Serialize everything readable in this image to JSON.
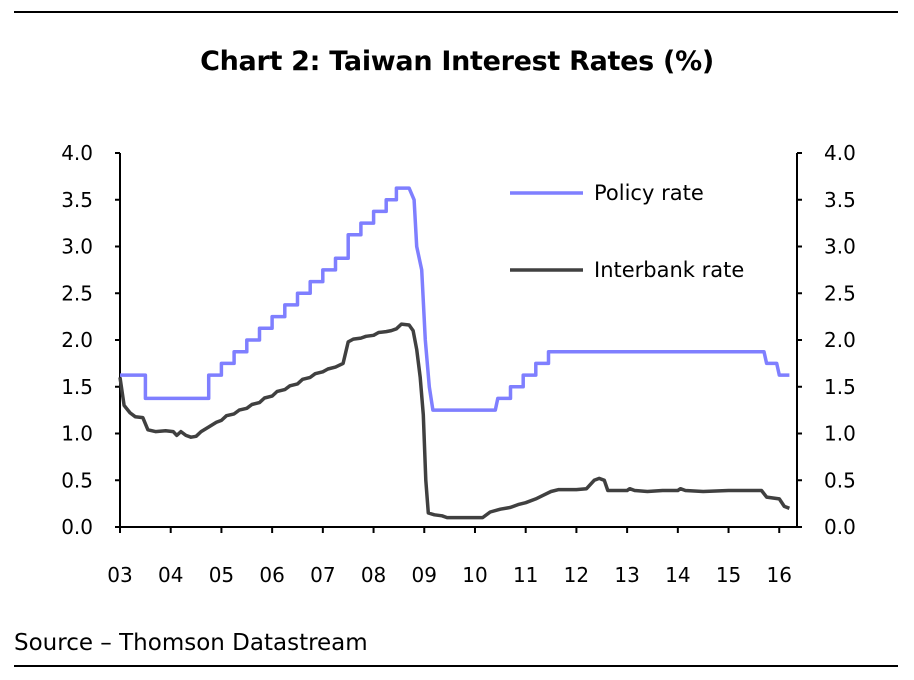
{
  "title": "Chart 2: Taiwan Interest Rates (%)",
  "source": "Source – Thomson Datastream",
  "chart_data": {
    "type": "line",
    "title": "Chart 2: Taiwan Interest Rates (%)",
    "xlabel": "",
    "ylabel": "",
    "xlim": [
      2003,
      2016.35
    ],
    "ylim": [
      0,
      4.0
    ],
    "y_ticks": [
      "0.0",
      "0.5",
      "1.0",
      "1.5",
      "2.0",
      "2.5",
      "3.0",
      "3.5",
      "4.0"
    ],
    "y_tick_values": [
      0,
      0.5,
      1.0,
      1.5,
      2.0,
      2.5,
      3.0,
      3.5,
      4.0
    ],
    "x_ticks": [
      "03",
      "04",
      "05",
      "06",
      "07",
      "08",
      "09",
      "10",
      "11",
      "12",
      "13",
      "14",
      "15",
      "16"
    ],
    "x_tick_values": [
      2003,
      2004,
      2005,
      2006,
      2007,
      2008,
      2009,
      2010,
      2011,
      2012,
      2013,
      2014,
      2015,
      2016
    ],
    "grid": false,
    "legend_position": "top-right",
    "series": [
      {
        "name": "Policy rate",
        "color": "#7f7fff",
        "line_shape": "step",
        "points": [
          [
            2003.0,
            1.625
          ],
          [
            2003.5,
            1.625
          ],
          [
            2003.5,
            1.375
          ],
          [
            2004.75,
            1.375
          ],
          [
            2004.75,
            1.625
          ],
          [
            2005.0,
            1.625
          ],
          [
            2005.0,
            1.75
          ],
          [
            2005.25,
            1.75
          ],
          [
            2005.25,
            1.875
          ],
          [
            2005.5,
            1.875
          ],
          [
            2005.5,
            2.0
          ],
          [
            2005.75,
            2.0
          ],
          [
            2005.75,
            2.125
          ],
          [
            2006.0,
            2.125
          ],
          [
            2006.0,
            2.25
          ],
          [
            2006.25,
            2.25
          ],
          [
            2006.25,
            2.375
          ],
          [
            2006.5,
            2.375
          ],
          [
            2006.5,
            2.5
          ],
          [
            2006.75,
            2.5
          ],
          [
            2006.75,
            2.625
          ],
          [
            2007.0,
            2.625
          ],
          [
            2007.0,
            2.75
          ],
          [
            2007.25,
            2.75
          ],
          [
            2007.25,
            2.875
          ],
          [
            2007.5,
            2.875
          ],
          [
            2007.5,
            3.125
          ],
          [
            2007.75,
            3.125
          ],
          [
            2007.75,
            3.25
          ],
          [
            2008.0,
            3.25
          ],
          [
            2008.0,
            3.375
          ],
          [
            2008.25,
            3.375
          ],
          [
            2008.25,
            3.5
          ],
          [
            2008.45,
            3.5
          ],
          [
            2008.45,
            3.625
          ],
          [
            2008.7,
            3.625
          ],
          [
            2008.8,
            3.5
          ],
          [
            2008.85,
            3.0
          ],
          [
            2008.95,
            2.75
          ],
          [
            2009.02,
            2.0
          ],
          [
            2009.1,
            1.5
          ],
          [
            2009.17,
            1.25
          ],
          [
            2010.4,
            1.25
          ],
          [
            2010.45,
            1.375
          ],
          [
            2010.7,
            1.375
          ],
          [
            2010.7,
            1.5
          ],
          [
            2010.95,
            1.5
          ],
          [
            2010.95,
            1.625
          ],
          [
            2011.2,
            1.625
          ],
          [
            2011.2,
            1.75
          ],
          [
            2011.45,
            1.75
          ],
          [
            2011.45,
            1.875
          ],
          [
            2015.7,
            1.875
          ],
          [
            2015.75,
            1.75
          ],
          [
            2015.95,
            1.75
          ],
          [
            2016.0,
            1.625
          ],
          [
            2016.2,
            1.625
          ]
        ]
      },
      {
        "name": "Interbank rate",
        "color": "#404040",
        "line_shape": "linear",
        "points": [
          [
            2003.0,
            1.6
          ],
          [
            2003.08,
            1.3
          ],
          [
            2003.2,
            1.22
          ],
          [
            2003.3,
            1.18
          ],
          [
            2003.45,
            1.17
          ],
          [
            2003.55,
            1.04
          ],
          [
            2003.7,
            1.02
          ],
          [
            2003.9,
            1.03
          ],
          [
            2004.05,
            1.02
          ],
          [
            2004.12,
            0.98
          ],
          [
            2004.2,
            1.02
          ],
          [
            2004.3,
            0.98
          ],
          [
            2004.4,
            0.96
          ],
          [
            2004.5,
            0.97
          ],
          [
            2004.6,
            1.02
          ],
          [
            2004.75,
            1.07
          ],
          [
            2004.9,
            1.12
          ],
          [
            2005.0,
            1.14
          ],
          [
            2005.1,
            1.19
          ],
          [
            2005.25,
            1.21
          ],
          [
            2005.35,
            1.25
          ],
          [
            2005.5,
            1.27
          ],
          [
            2005.6,
            1.31
          ],
          [
            2005.75,
            1.33
          ],
          [
            2005.85,
            1.38
          ],
          [
            2006.0,
            1.4
          ],
          [
            2006.1,
            1.45
          ],
          [
            2006.25,
            1.47
          ],
          [
            2006.35,
            1.51
          ],
          [
            2006.5,
            1.53
          ],
          [
            2006.6,
            1.58
          ],
          [
            2006.75,
            1.6
          ],
          [
            2006.85,
            1.64
          ],
          [
            2007.0,
            1.66
          ],
          [
            2007.1,
            1.69
          ],
          [
            2007.25,
            1.71
          ],
          [
            2007.4,
            1.75
          ],
          [
            2007.5,
            1.98
          ],
          [
            2007.6,
            2.01
          ],
          [
            2007.75,
            2.02
          ],
          [
            2007.85,
            2.04
          ],
          [
            2008.0,
            2.05
          ],
          [
            2008.1,
            2.08
          ],
          [
            2008.25,
            2.09
          ],
          [
            2008.35,
            2.1
          ],
          [
            2008.45,
            2.12
          ],
          [
            2008.55,
            2.17
          ],
          [
            2008.7,
            2.16
          ],
          [
            2008.78,
            2.1
          ],
          [
            2008.85,
            1.9
          ],
          [
            2008.92,
            1.6
          ],
          [
            2008.98,
            1.2
          ],
          [
            2009.03,
            0.5
          ],
          [
            2009.08,
            0.15
          ],
          [
            2009.2,
            0.13
          ],
          [
            2009.35,
            0.12
          ],
          [
            2009.45,
            0.1
          ],
          [
            2009.7,
            0.1
          ],
          [
            2010.0,
            0.1
          ],
          [
            2010.15,
            0.1
          ],
          [
            2010.3,
            0.16
          ],
          [
            2010.5,
            0.19
          ],
          [
            2010.7,
            0.21
          ],
          [
            2010.85,
            0.24
          ],
          [
            2011.0,
            0.26
          ],
          [
            2011.2,
            0.3
          ],
          [
            2011.35,
            0.34
          ],
          [
            2011.5,
            0.38
          ],
          [
            2011.65,
            0.4
          ],
          [
            2012.0,
            0.4
          ],
          [
            2012.2,
            0.41
          ],
          [
            2012.35,
            0.5
          ],
          [
            2012.45,
            0.52
          ],
          [
            2012.55,
            0.5
          ],
          [
            2012.62,
            0.39
          ],
          [
            2012.8,
            0.39
          ],
          [
            2013.0,
            0.39
          ],
          [
            2013.05,
            0.41
          ],
          [
            2013.15,
            0.39
          ],
          [
            2013.4,
            0.38
          ],
          [
            2013.7,
            0.39
          ],
          [
            2014.0,
            0.39
          ],
          [
            2014.05,
            0.41
          ],
          [
            2014.15,
            0.39
          ],
          [
            2014.5,
            0.38
          ],
          [
            2015.0,
            0.39
          ],
          [
            2015.5,
            0.39
          ],
          [
            2015.65,
            0.39
          ],
          [
            2015.75,
            0.32
          ],
          [
            2016.0,
            0.3
          ],
          [
            2016.1,
            0.22
          ],
          [
            2016.2,
            0.2
          ]
        ]
      }
    ]
  }
}
